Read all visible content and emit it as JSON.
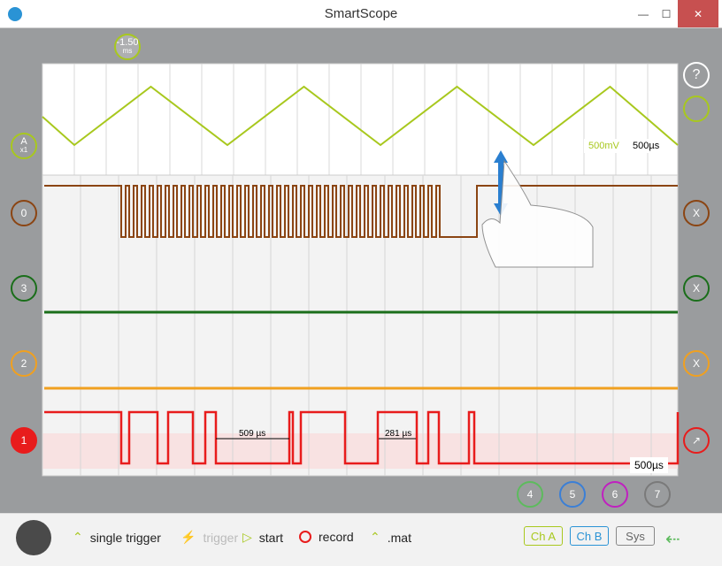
{
  "window": {
    "title": "SmartScope"
  },
  "overview": {
    "time_marker": "-1.50",
    "time_marker_unit": "ms",
    "volt_div": "500mV",
    "time_div": "500µs",
    "channel_label": "A",
    "channel_sub": "x1"
  },
  "main": {
    "time_div": "500µs",
    "measure1": "509 µs",
    "measure2": "281 µs"
  },
  "channels_left": [
    {
      "label": "0",
      "color": "#8b4513"
    },
    {
      "label": "3",
      "color": "#1a6e1a"
    },
    {
      "label": "2",
      "color": "#f0a020"
    },
    {
      "label": "1",
      "color": "#e81c1c"
    }
  ],
  "channels_right": [
    {
      "label": "X"
    },
    {
      "label": "X"
    },
    {
      "label": "X"
    }
  ],
  "digital_buttons": [
    {
      "label": "4",
      "color": "#5dbb5d"
    },
    {
      "label": "5",
      "color": "#3b7fd6"
    },
    {
      "label": "6",
      "color": "#c020c0"
    },
    {
      "label": "7",
      "color": "#7a7a7a"
    }
  ],
  "bottombar": {
    "single_trigger": "single trigger",
    "trigger": "trigger",
    "start": "start",
    "record": "record",
    "mat": ".mat",
    "ch_a": "Ch A",
    "ch_b": "Ch B",
    "sys": "Sys"
  },
  "colors": {
    "analog": "#a8c81e",
    "ch0": "#8b4513",
    "ch3": "#1a6e1a",
    "ch2": "#f0a020",
    "ch1": "#e81c1c",
    "chb": "#2a93d5"
  }
}
